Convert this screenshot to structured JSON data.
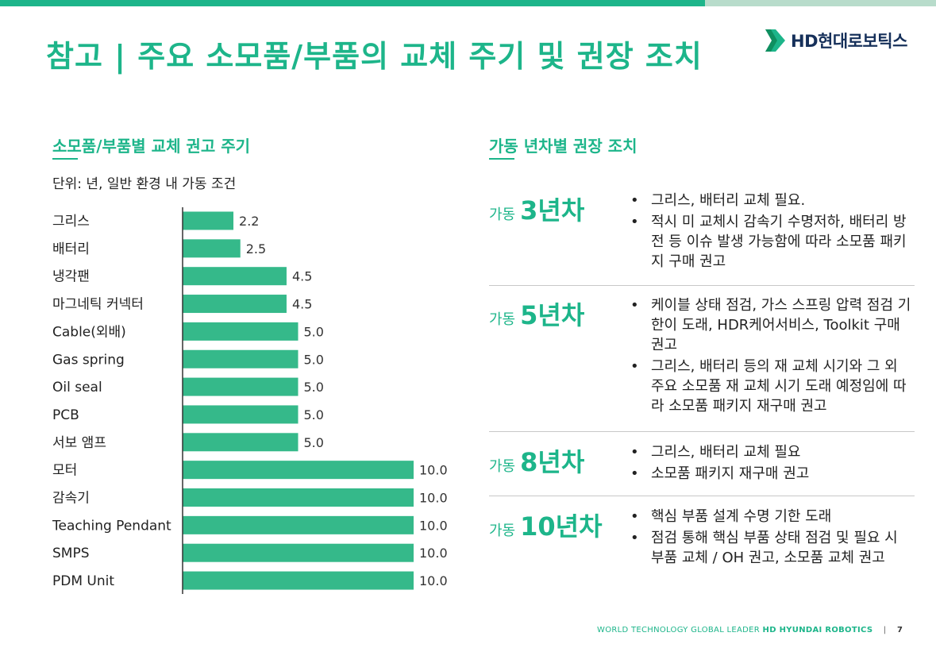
{
  "title": "참고 | 주요 소모품/부품의 교체 주기 및 권장 조치",
  "logo": {
    "text": "HD현대로보틱스",
    "icon": "hd-logo-mark-icon"
  },
  "left_section": {
    "title": "소모품/부품별 교체 권고 주기",
    "unit_note": "단위: 년, 일반 환경 내 가동 조건"
  },
  "chart_data": {
    "type": "bar",
    "orientation": "horizontal",
    "categories": [
      "그리스",
      "배터리",
      "냉각팬",
      "마그네틱 커넥터",
      "Cable(외배)",
      "Gas spring",
      "Oil seal",
      "PCB",
      "서보 앰프",
      "모터",
      "감속기",
      "Teaching Pendant",
      "SMPS",
      "PDM Unit"
    ],
    "values": [
      2.2,
      2.5,
      4.5,
      4.5,
      5.0,
      5.0,
      5.0,
      5.0,
      5.0,
      10.0,
      10.0,
      10.0,
      10.0,
      10.0
    ],
    "value_labels": [
      "2.2",
      "2.5",
      "4.5",
      "4.5",
      "5.0",
      "5.0",
      "5.0",
      "5.0",
      "5.0",
      "10.0",
      "10.0",
      "10.0",
      "10.0",
      "10.0"
    ],
    "xlim": [
      0,
      10
    ],
    "bar_color": "#35b98a",
    "axis_color": "#333333",
    "grid": false,
    "legend": "none"
  },
  "right_section": {
    "title": "가동 년차별 권장 조치",
    "bullet": "•",
    "prefix": "가동",
    "recommendations": [
      {
        "year": "3년차",
        "items": [
          "그리스, 배터리 교체 필요.",
          "적시 미 교체시 감속기 수명저하, 배터리 방전 등 이슈 발생 가능함에 따라 소모품 패키지 구매 권고"
        ]
      },
      {
        "year": "5년차",
        "items": [
          "케이블 상태 점검, 가스 스프링 압력 점검 기한이 도래, HDR케어서비스, Toolkit 구매 권고",
          "그리스, 배터리 등의 재 교체 시기와 그 외 주요 소모품 재 교체 시기 도래 예정임에 따라 소모품 패키지 재구매 권고"
        ]
      },
      {
        "year": "8년차",
        "items": [
          "그리스, 배터리 교체 필요",
          "소모품 패키지 재구매 권고"
        ]
      },
      {
        "year": "10년차",
        "items": [
          "핵심 부품 설계 수명 기한 도래",
          "점검 통해 핵심 부품 상태 점검 및 필요 시 부품 교체 / OH 권고, 소모품 교체 권고"
        ]
      }
    ]
  },
  "footer": {
    "text": "WORLD TECHNOLOGY GLOBAL LEADER",
    "brand": "HD HYUNDAI ROBOTICS",
    "separator": "|",
    "page": "7"
  },
  "colors": {
    "accent": "#1db58a",
    "accent_light": "#b8dccb",
    "logo_text": "#16305a"
  }
}
